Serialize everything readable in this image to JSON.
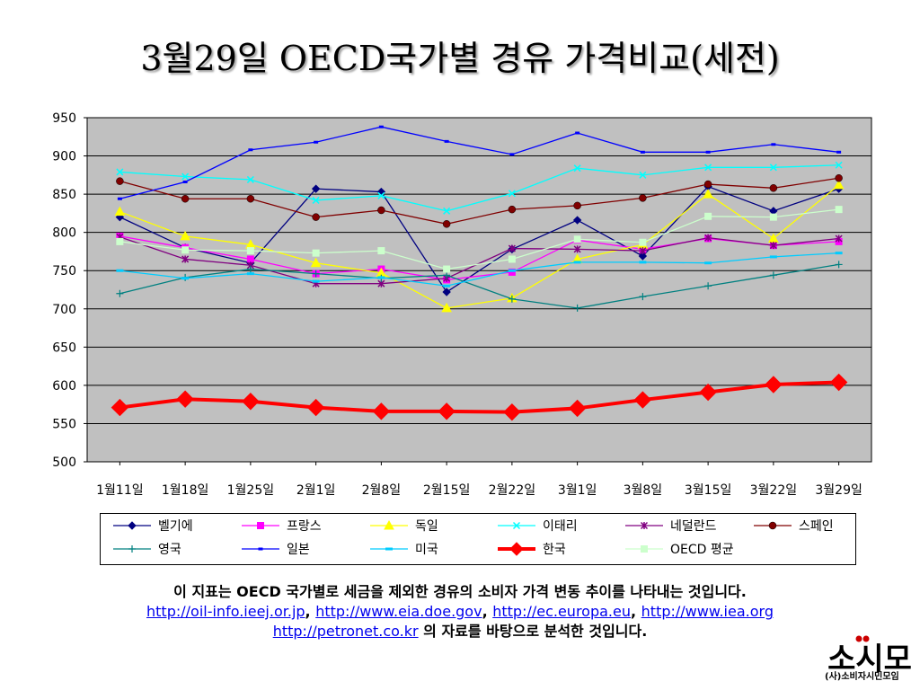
{
  "title": "3월29일 OECD국가별 경유 가격비교(세전)",
  "chart_data": {
    "type": "line",
    "categories": [
      "1월11일",
      "1월18일",
      "1월25일",
      "2월1일",
      "2월8일",
      "2월15일",
      "2월22일",
      "3월1일",
      "3월8일",
      "3월15일",
      "3월22일",
      "3월29일"
    ],
    "ylim": [
      500,
      950
    ],
    "yticks": [
      500,
      550,
      600,
      650,
      700,
      750,
      800,
      850,
      900,
      950
    ],
    "grid": true,
    "plot_background": "#c0c0c0",
    "legend_position": "bottom",
    "series": [
      {
        "name": "벨기에",
        "color": "#000080",
        "marker": "diamond",
        "values": [
          820,
          780,
          760,
          857,
          853,
          722,
          778,
          816,
          769,
          860,
          828,
          857
        ]
      },
      {
        "name": "프랑스",
        "color": "#ff00ff",
        "marker": "square",
        "values": [
          795,
          780,
          765,
          746,
          752,
          738,
          748,
          790,
          778,
          792,
          783,
          788
        ]
      },
      {
        "name": "독일",
        "color": "#ffff00",
        "marker": "triangle",
        "values": [
          827,
          795,
          784,
          760,
          747,
          701,
          714,
          765,
          784,
          850,
          792,
          862
        ]
      },
      {
        "name": "이태리",
        "color": "#00ffff",
        "marker": "x",
        "values": [
          879,
          873,
          869,
          842,
          848,
          828,
          851,
          884,
          875,
          885,
          885,
          888
        ]
      },
      {
        "name": "네덜란드",
        "color": "#800080",
        "marker": "star",
        "values": [
          794,
          765,
          757,
          733,
          733,
          740,
          779,
          778,
          776,
          793,
          783,
          792
        ]
      },
      {
        "name": "스페인",
        "color": "#800000",
        "marker": "circle",
        "values": [
          867,
          844,
          844,
          820,
          829,
          811,
          830,
          835,
          845,
          863,
          858,
          871
        ]
      },
      {
        "name": "영국",
        "color": "#008080",
        "marker": "plus",
        "values": [
          720,
          741,
          752,
          746,
          740,
          744,
          713,
          701,
          716,
          730,
          744,
          758
        ]
      },
      {
        "name": "일본",
        "color": "#0000ff",
        "marker": "dash",
        "values": [
          844,
          866,
          908,
          918,
          938,
          919,
          902,
          930,
          905,
          905,
          915,
          905
        ]
      },
      {
        "name": "미국",
        "color": "#00ccff",
        "marker": "bar",
        "values": [
          750,
          740,
          746,
          736,
          741,
          730,
          750,
          761,
          761,
          760,
          768,
          773
        ]
      },
      {
        "name": "한국",
        "color": "#ff0000",
        "marker": "bigdiamond",
        "values": [
          571,
          582,
          579,
          571,
          566,
          566,
          565,
          570,
          581,
          591,
          601,
          604
        ]
      },
      {
        "name": "OECD 평균",
        "color": "#ccffcc",
        "marker": "square",
        "values": [
          788,
          777,
          776,
          773,
          776,
          752,
          765,
          791,
          787,
          821,
          820,
          830
        ]
      }
    ]
  },
  "footer": {
    "line1": "이 지표는 OECD 국가별로 세금을 제외한 경유의 소비자 가격 변동 추이를 나타내는 것입니다.",
    "links": [
      "http://oil-info.ieej.or.jp",
      "http://www.eia.doe.gov",
      "http://ec.europa.eu",
      "http://www.iea.org",
      "http://petronet.co.kr"
    ],
    "sep": ", ",
    "tail": " 의 자료를 바탕으로 분석한 것입니다."
  },
  "logo": {
    "text": "소시모",
    "subtitle": "(사)소비자시민모임",
    "colors": {
      "main": "#000000",
      "accent": "#cc0000"
    }
  }
}
